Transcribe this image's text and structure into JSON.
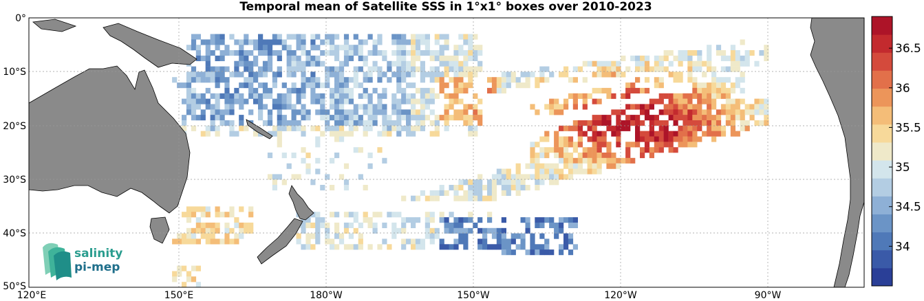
{
  "title": "Temporal mean of Satellite SSS in 1°x1° boxes over 2010-2023",
  "x_ticks": [
    "120°E",
    "150°E",
    "180°W",
    "150°W",
    "120°W",
    "90°W"
  ],
  "y_ticks": [
    "0°",
    "10°S",
    "20°S",
    "30°S",
    "40°S",
    "50°S"
  ],
  "colorbar": {
    "ticks": [
      "34",
      "34.5",
      "35",
      "35.5",
      "36",
      "36.5"
    ],
    "colors": [
      "#2a3f97",
      "#3a5aa8",
      "#4f79b8",
      "#6b94c6",
      "#8eb0d6",
      "#b3cde3",
      "#d3e5ec",
      "#efe9c9",
      "#f7d99a",
      "#f4bd78",
      "#ec955a",
      "#e2704a",
      "#d44a3c",
      "#c32a2e",
      "#ad1428"
    ]
  },
  "logo": {
    "line1": "salinity",
    "line2": "pi-mep"
  },
  "chart_data": {
    "type": "heatmap",
    "title": "Temporal mean of Satellite SSS in 1°x1° boxes over 2010-2023",
    "lon_range": [
      120,
      295
    ],
    "lat_range": [
      -50,
      0
    ],
    "color_range": [
      33.5,
      36.9
    ],
    "colorbar_ticks": [
      34,
      34.5,
      35,
      35.5,
      36,
      36.5
    ],
    "grid": true,
    "colormap": "reversed red-yellow-blue"
  }
}
